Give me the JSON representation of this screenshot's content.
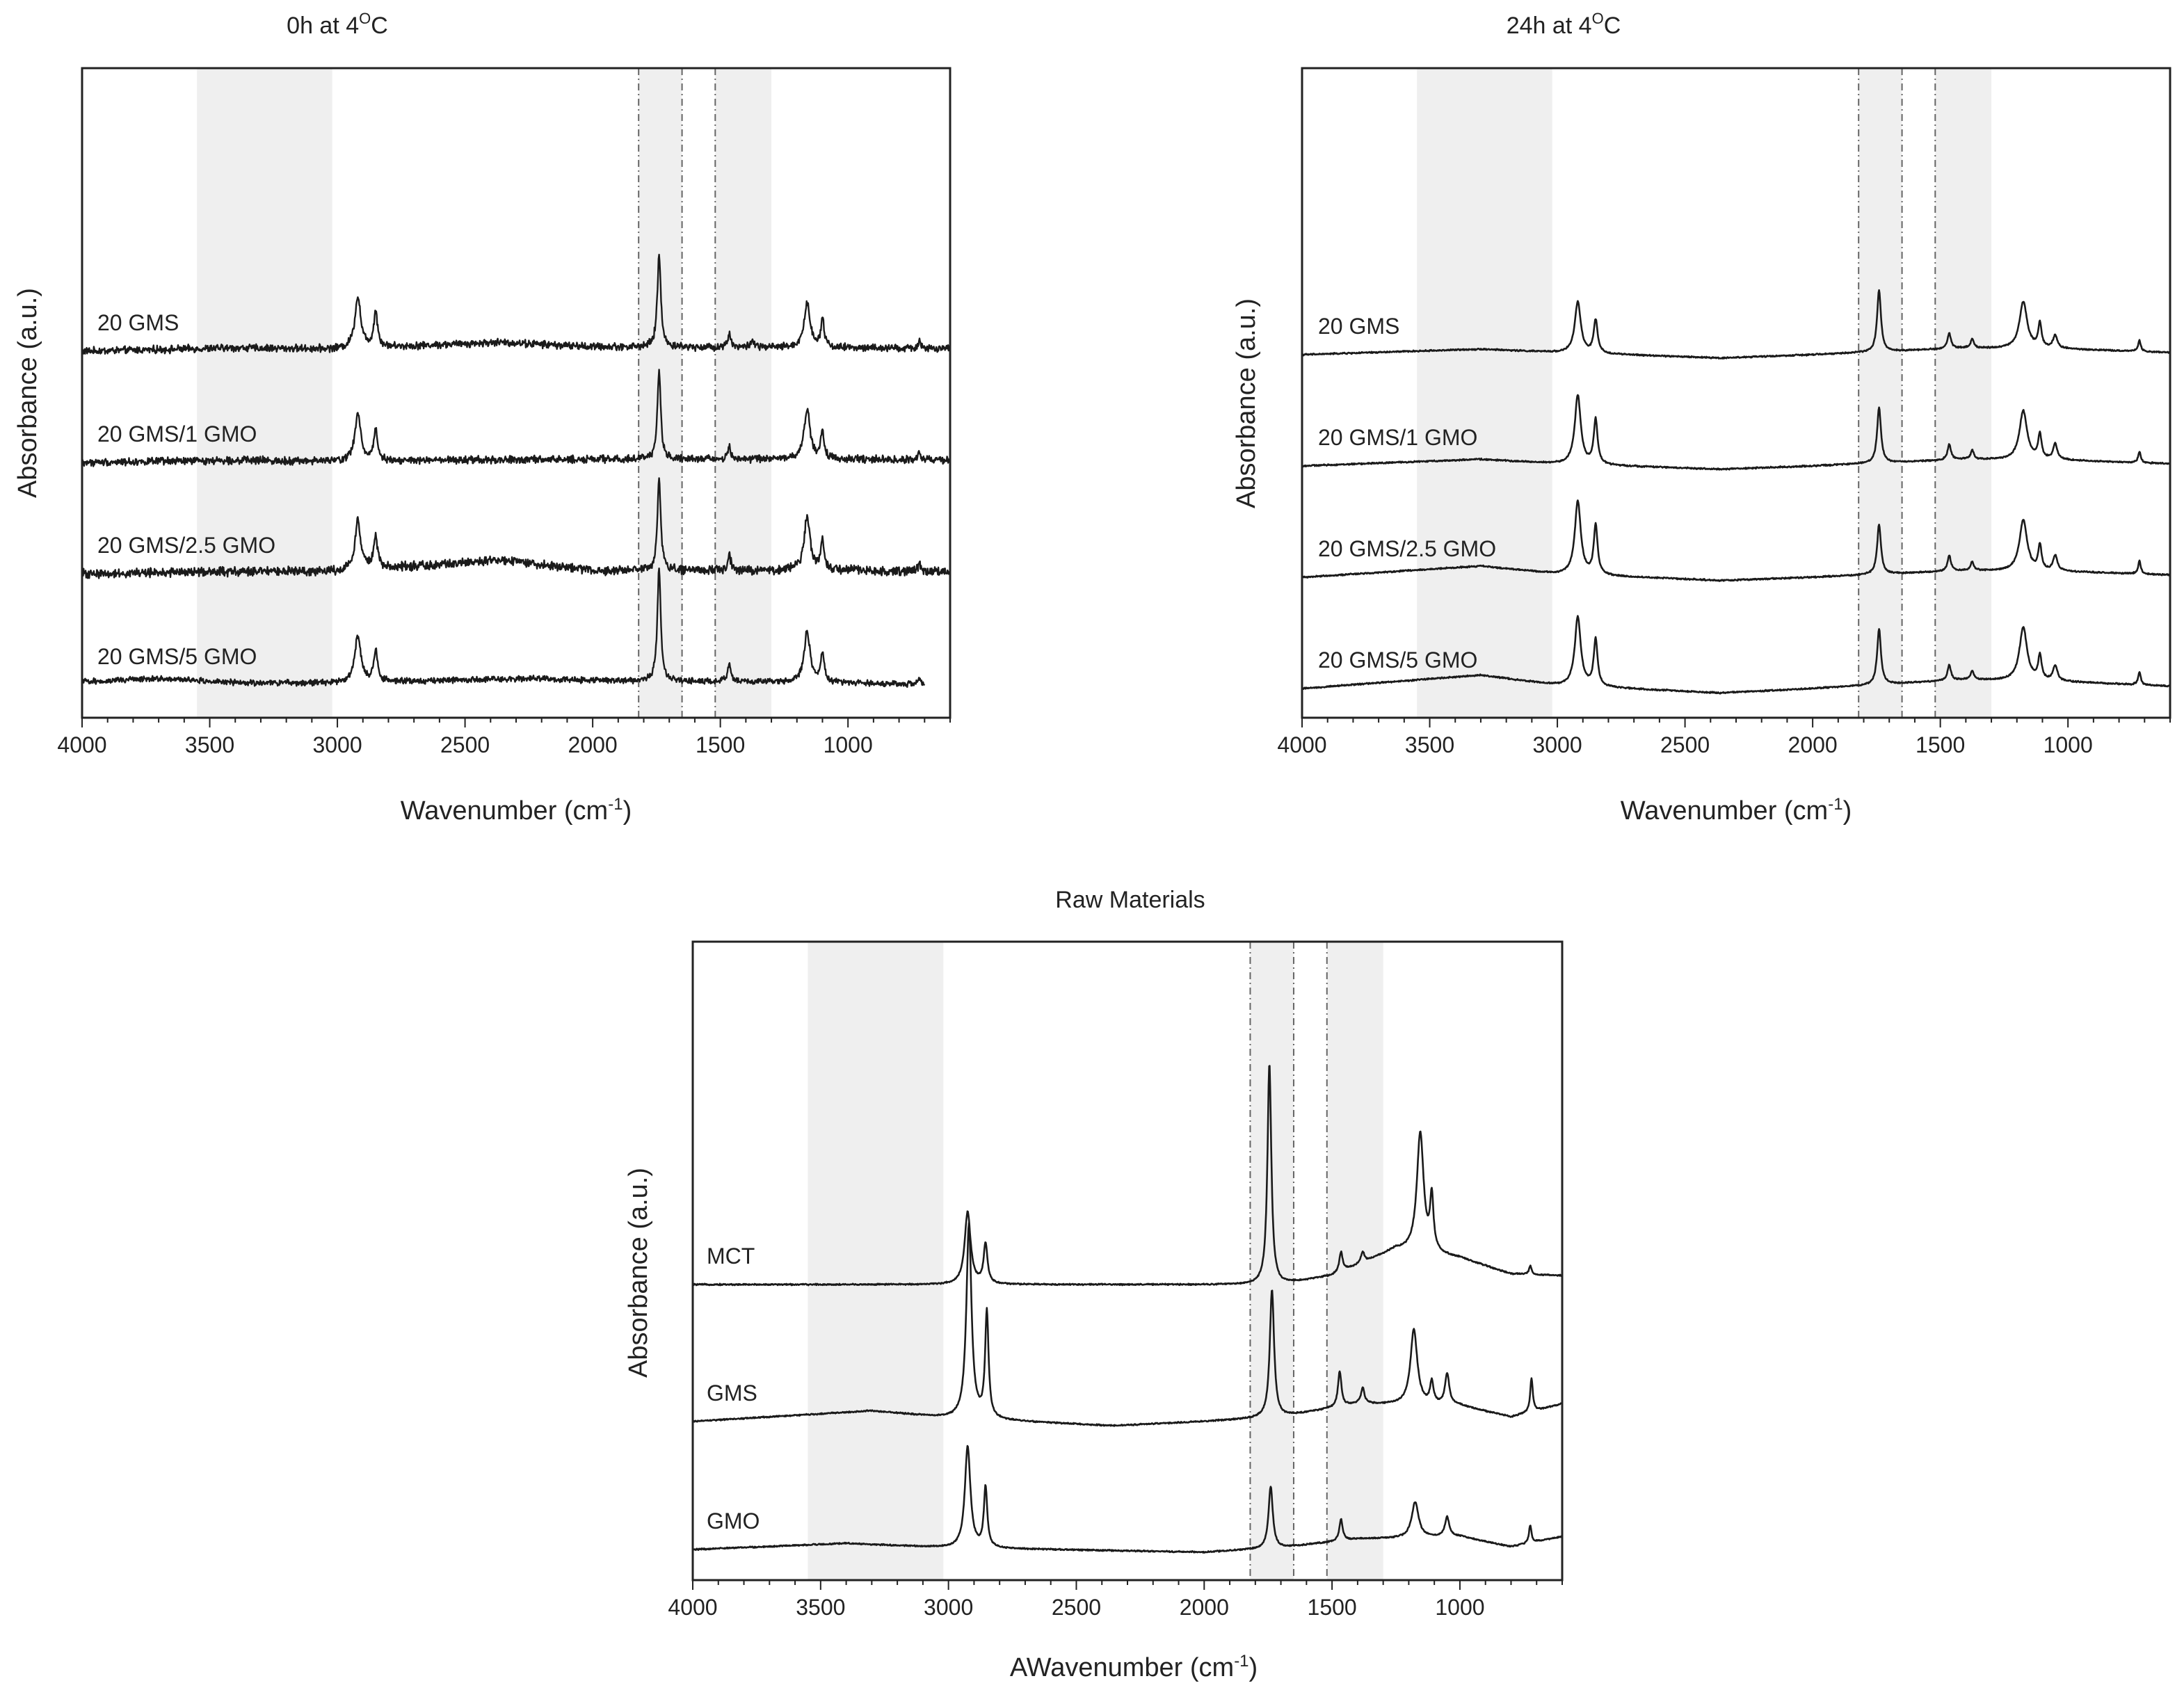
{
  "chart_data": [
    {
      "type": "line",
      "title": "0h at 4°C",
      "title_base": "0h at 4",
      "title_sup": "O",
      "title_tail": "C",
      "xlabel": "Wavenumber (cm⁻¹)",
      "xlabel_base": "Wavenumber (cm",
      "xlabel_sup": "-1",
      "xlabel_tail": ")",
      "ylabel": "Absorbance (a.u.)",
      "xlim": [
        4000,
        600
      ],
      "x_reversed": true,
      "xticks": [
        4000,
        3500,
        3000,
        2500,
        2000,
        1500,
        1000
      ],
      "shaded_regions": [
        [
          3550,
          3020
        ],
        [
          1820,
          1650
        ],
        [
          1520,
          1300
        ]
      ],
      "dashed_lines": [
        1820,
        1650,
        1520
      ],
      "series": [
        {
          "name": "20 GMS",
          "offset": 3.0,
          "noise": 0.05,
          "baseline": [
            [
              4000,
              0
            ],
            [
              3400,
              0.03
            ],
            [
              3000,
              0.02
            ],
            [
              2360,
              0.08
            ],
            [
              2000,
              0.04
            ],
            [
              1000,
              0.03
            ],
            [
              600,
              0.02
            ]
          ],
          "peaks": [
            [
              2920,
              0.46,
              14
            ],
            [
              2850,
              0.32,
              9
            ],
            [
              1740,
              0.84,
              8
            ],
            [
              1465,
              0.12,
              8
            ],
            [
              1375,
              0.07,
              7
            ],
            [
              1160,
              0.4,
              14
            ],
            [
              1100,
              0.26,
              8
            ],
            [
              720,
              0.08,
              6
            ]
          ]
        },
        {
          "name": "20 GMS/1 GMO",
          "offset": 2.0,
          "noise": 0.05,
          "baseline": [
            [
              4000,
              0
            ],
            [
              3400,
              0.02
            ],
            [
              3000,
              0.01
            ],
            [
              2000,
              0.03
            ],
            [
              1000,
              0.03
            ],
            [
              600,
              0.02
            ]
          ],
          "peaks": [
            [
              2920,
              0.42,
              14
            ],
            [
              2850,
              0.28,
              9
            ],
            [
              1740,
              0.78,
              8
            ],
            [
              1465,
              0.1,
              8
            ],
            [
              1160,
              0.44,
              14
            ],
            [
              1100,
              0.24,
              8
            ],
            [
              720,
              0.08,
              6
            ]
          ]
        },
        {
          "name": "20 GMS/2.5 GMO",
          "offset": 1.0,
          "noise": 0.06,
          "baseline": [
            [
              4000,
              0
            ],
            [
              3400,
              0.02
            ],
            [
              3000,
              0.02
            ],
            [
              2360,
              0.12
            ],
            [
              2000,
              0.03
            ],
            [
              1000,
              0.03
            ],
            [
              600,
              0.02
            ]
          ],
          "peaks": [
            [
              2920,
              0.44,
              14
            ],
            [
              2850,
              0.3,
              9
            ],
            [
              1740,
              0.82,
              8
            ],
            [
              1465,
              0.14,
              8
            ],
            [
              1160,
              0.48,
              14
            ],
            [
              1100,
              0.26,
              8
            ],
            [
              720,
              0.08,
              6
            ]
          ]
        },
        {
          "name": "20 GMS/5 GMO",
          "offset": 0.0,
          "noise": 0.04,
          "baseline": [
            [
              4000,
              0.03
            ],
            [
              3700,
              0.06
            ],
            [
              3400,
              0.02
            ],
            [
              3000,
              0.02
            ],
            [
              2200,
              0.06
            ],
            [
              2000,
              0.04
            ],
            [
              1000,
              0.02
            ],
            [
              600,
              0.0
            ]
          ],
          "peaks": [
            [
              2920,
              0.42,
              14
            ],
            [
              2850,
              0.28,
              9
            ],
            [
              1740,
              1.02,
              8
            ],
            [
              1465,
              0.14,
              8
            ],
            [
              1160,
              0.46,
              14
            ],
            [
              1100,
              0.26,
              8
            ],
            [
              720,
              0.06,
              6
            ]
          ]
        }
      ]
    },
    {
      "type": "line",
      "title": "24h at 4°C",
      "title_base": "24h at 4",
      "title_sup": "O",
      "title_tail": "C",
      "xlabel": "Wavenumber (cm⁻¹)",
      "xlabel_base": "Wavenumber (cm",
      "xlabel_sup": "-1",
      "xlabel_tail": ")",
      "ylabel": "Absorbance (a.u.)",
      "xlim": [
        4000,
        600
      ],
      "x_reversed": true,
      "xticks": [
        4000,
        3500,
        3000,
        2500,
        2000,
        1500,
        1000
      ],
      "shaded_regions": [
        [
          3550,
          3020
        ],
        [
          1820,
          1650
        ],
        [
          1520,
          1300
        ]
      ],
      "dashed_lines": [
        1820,
        1650,
        1520
      ],
      "series": [
        {
          "name": "20 GMS",
          "offset": 3.0,
          "noise": 0.01,
          "baseline": [
            [
              4000,
              0
            ],
            [
              3300,
              0.05
            ],
            [
              3000,
              0.02
            ],
            [
              2360,
              -0.03
            ],
            [
              2000,
              0.0
            ],
            [
              1400,
              0.06
            ],
            [
              1000,
              0.05
            ],
            [
              600,
              0.02
            ]
          ],
          "peaks": [
            [
              2920,
              0.46,
              14
            ],
            [
              2850,
              0.3,
              9
            ],
            [
              1740,
              0.55,
              9
            ],
            [
              1465,
              0.14,
              8
            ],
            [
              1375,
              0.08,
              7
            ],
            [
              1175,
              0.42,
              18
            ],
            [
              1110,
              0.22,
              8
            ],
            [
              1050,
              0.12,
              10
            ],
            [
              720,
              0.1,
              6
            ]
          ]
        },
        {
          "name": "20 GMS/1 GMO",
          "offset": 2.0,
          "noise": 0.01,
          "baseline": [
            [
              4000,
              0
            ],
            [
              3300,
              0.06
            ],
            [
              3000,
              0.02
            ],
            [
              2360,
              -0.03
            ],
            [
              2000,
              0.0
            ],
            [
              1400,
              0.06
            ],
            [
              1000,
              0.05
            ],
            [
              600,
              0.02
            ]
          ],
          "peaks": [
            [
              2920,
              0.62,
              14
            ],
            [
              2850,
              0.4,
              9
            ],
            [
              1740,
              0.5,
              9
            ],
            [
              1465,
              0.14,
              8
            ],
            [
              1375,
              0.08,
              7
            ],
            [
              1175,
              0.44,
              18
            ],
            [
              1110,
              0.22,
              8
            ],
            [
              1050,
              0.14,
              10
            ],
            [
              720,
              0.1,
              6
            ]
          ]
        },
        {
          "name": "20 GMS/2.5 GMO",
          "offset": 1.0,
          "noise": 0.01,
          "baseline": [
            [
              4000,
              0
            ],
            [
              3300,
              0.1
            ],
            [
              3000,
              0.03
            ],
            [
              2360,
              -0.03
            ],
            [
              2000,
              0.0
            ],
            [
              1400,
              0.06
            ],
            [
              1000,
              0.05
            ],
            [
              600,
              0.02
            ]
          ],
          "peaks": [
            [
              2920,
              0.66,
              14
            ],
            [
              2850,
              0.44,
              9
            ],
            [
              1740,
              0.45,
              9
            ],
            [
              1465,
              0.14,
              8
            ],
            [
              1375,
              0.08,
              7
            ],
            [
              1175,
              0.46,
              18
            ],
            [
              1110,
              0.22,
              8
            ],
            [
              1050,
              0.14,
              10
            ],
            [
              720,
              0.12,
              6
            ]
          ]
        },
        {
          "name": "20 GMS/5 GMO",
          "offset": 0.0,
          "noise": 0.01,
          "baseline": [
            [
              4000,
              0
            ],
            [
              3300,
              0.12
            ],
            [
              3000,
              0.03
            ],
            [
              2360,
              -0.04
            ],
            [
              2000,
              0.0
            ],
            [
              1400,
              0.08
            ],
            [
              1000,
              0.06
            ],
            [
              600,
              0.02
            ]
          ],
          "peaks": [
            [
              2920,
              0.62,
              14
            ],
            [
              2850,
              0.42,
              9
            ],
            [
              1740,
              0.5,
              9
            ],
            [
              1465,
              0.14,
              8
            ],
            [
              1375,
              0.08,
              7
            ],
            [
              1175,
              0.48,
              18
            ],
            [
              1110,
              0.22,
              8
            ],
            [
              1050,
              0.14,
              10
            ],
            [
              720,
              0.12,
              6
            ]
          ]
        }
      ]
    },
    {
      "type": "line",
      "title": "Raw Materials",
      "title_base": "Raw Materials",
      "title_sup": "",
      "title_tail": "",
      "xlabel": "AWavenumber (cm⁻¹)",
      "xlabel_base": "AWavenumber (cm",
      "xlabel_sup": "-1",
      "xlabel_tail": ")",
      "ylabel": "Absorbance (a.u.)",
      "xlim": [
        4000,
        600
      ],
      "x_reversed": true,
      "xticks": [
        4000,
        3500,
        3000,
        2500,
        2000,
        1500,
        1000
      ],
      "shaded_regions": [
        [
          3550,
          3020
        ],
        [
          1820,
          1650
        ],
        [
          1520,
          1300
        ]
      ],
      "dashed_lines": [
        1820,
        1650,
        1520
      ],
      "series": [
        {
          "name": "MCT",
          "offset": 3.0,
          "noise": 0.012,
          "baseline": [
            [
              4000,
              0
            ],
            [
              3000,
              0.0
            ],
            [
              2000,
              0.0
            ],
            [
              1700,
              0.0
            ],
            [
              1500,
              0.1
            ],
            [
              1250,
              0.4
            ],
            [
              1000,
              0.3
            ],
            [
              800,
              0.12
            ],
            [
              600,
              0.1
            ]
          ],
          "peaks": [
            [
              2925,
              0.82,
              14
            ],
            [
              2855,
              0.45,
              9
            ],
            [
              1745,
              2.5,
              9
            ],
            [
              1465,
              0.22,
              8
            ],
            [
              1380,
              0.12,
              8
            ],
            [
              1155,
              1.35,
              16
            ],
            [
              1110,
              0.6,
              8
            ],
            [
              725,
              0.1,
              6
            ]
          ]
        },
        {
          "name": "GMS",
          "offset": 1.45,
          "noise": 0.012,
          "baseline": [
            [
              4000,
              0
            ],
            [
              3300,
              0.12
            ],
            [
              3000,
              0.04
            ],
            [
              2360,
              -0.05
            ],
            [
              2000,
              0.0
            ],
            [
              1700,
              0.05
            ],
            [
              1400,
              0.2
            ],
            [
              1000,
              0.18
            ],
            [
              800,
              0.05
            ],
            [
              600,
              0.2
            ]
          ],
          "peaks": [
            [
              2920,
              2.2,
              12
            ],
            [
              2850,
              1.2,
              8
            ],
            [
              1735,
              1.45,
              10
            ],
            [
              1470,
              0.4,
              8
            ],
            [
              1380,
              0.18,
              8
            ],
            [
              1180,
              0.85,
              16
            ],
            [
              1110,
              0.25,
              8
            ],
            [
              1050,
              0.35,
              10
            ],
            [
              720,
              0.38,
              6
            ]
          ]
        },
        {
          "name": "GMO",
          "offset": 0.0,
          "noise": 0.012,
          "baseline": [
            [
              4000,
              0
            ],
            [
              3400,
              0.07
            ],
            [
              3000,
              0.02
            ],
            [
              2000,
              -0.03
            ],
            [
              1700,
              0.02
            ],
            [
              1400,
              0.12
            ],
            [
              1000,
              0.15
            ],
            [
              800,
              0.03
            ],
            [
              600,
              0.15
            ]
          ],
          "peaks": [
            [
              2925,
              1.15,
              13
            ],
            [
              2855,
              0.68,
              8
            ],
            [
              1740,
              0.7,
              10
            ],
            [
              1465,
              0.24,
              8
            ],
            [
              1175,
              0.4,
              16
            ],
            [
              1050,
              0.22,
              10
            ],
            [
              725,
              0.2,
              6
            ]
          ]
        }
      ]
    }
  ]
}
